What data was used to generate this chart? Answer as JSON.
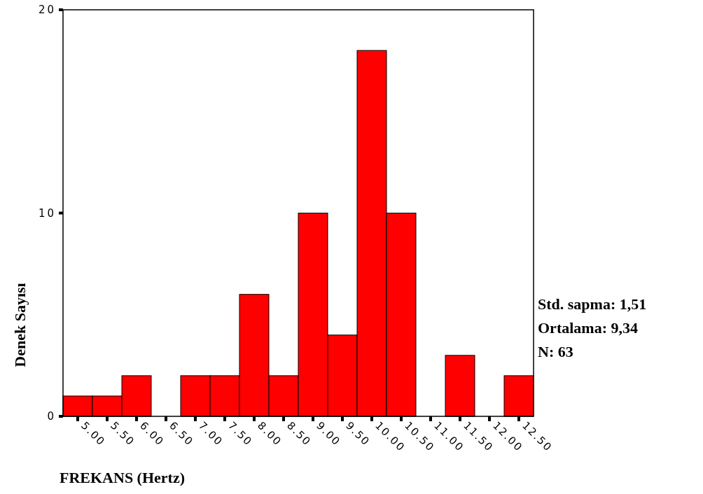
{
  "chart_data": {
    "type": "histogram",
    "xlabel": "FREKANS (Hertz)",
    "ylabel": "Denek Sayısı",
    "bins": [
      4.75,
      5.25,
      5.75,
      6.25,
      6.75,
      7.25,
      7.75,
      8.25,
      8.75,
      9.25,
      9.75,
      10.25,
      10.75,
      11.25,
      11.75,
      12.25,
      12.75
    ],
    "values": [
      1,
      1,
      2,
      0,
      2,
      2,
      6,
      2,
      10,
      4,
      18,
      10,
      0,
      3,
      0,
      2
    ],
    "color": "#ff0000",
    "xlim": [
      4.75,
      12.75
    ],
    "xticks": [
      {
        "value": 5,
        "label": "5.00"
      },
      {
        "value": 5.5,
        "label": "5.50"
      },
      {
        "value": 6,
        "label": "6.00"
      },
      {
        "value": 6.5,
        "label": "6.50"
      },
      {
        "value": 7,
        "label": "7.00"
      },
      {
        "value": 7.5,
        "label": "7.50"
      },
      {
        "value": 8,
        "label": "8.00"
      },
      {
        "value": 8.5,
        "label": "8.50"
      },
      {
        "value": 9,
        "label": "9.00"
      },
      {
        "value": 9.5,
        "label": "9.50"
      },
      {
        "value": 10,
        "label": "10.00"
      },
      {
        "value": 10.5,
        "label": "10.50"
      },
      {
        "value": 11,
        "label": "11.00"
      },
      {
        "value": 11.5,
        "label": "11.50"
      },
      {
        "value": 12,
        "label": "12.00"
      },
      {
        "value": 12.5,
        "label": "12.50"
      }
    ],
    "ylim": [
      0,
      20
    ],
    "yticks": [
      0,
      10,
      20
    ],
    "grid": false,
    "annotations": [
      "Std. sapma: 1,51",
      "Ortalama: 9,34",
      "N: 63"
    ]
  }
}
